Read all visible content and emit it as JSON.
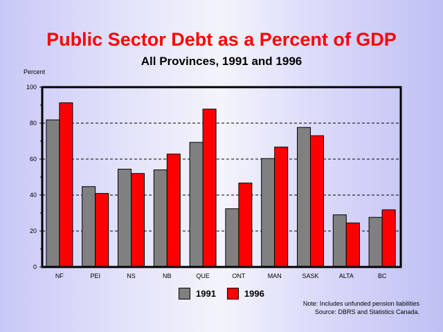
{
  "chart_data": {
    "type": "bar",
    "title": "Public Sector Debt as a Percent of GDP",
    "subtitle": "All Provinces, 1991 and 1996",
    "ylabel": "Percent",
    "xlabel": "",
    "ylim": [
      0,
      100
    ],
    "yticks": [
      0,
      20,
      40,
      60,
      80,
      100
    ],
    "grid": "dashed horizontal at 20,40,60,80",
    "legend_position": "bottom-center",
    "categories": [
      "NF",
      "PEI",
      "NS",
      "NB",
      "QUE",
      "ONT",
      "MAN",
      "SASK",
      "ALTA",
      "BC"
    ],
    "series": [
      {
        "name": "1991",
        "color": "#808080",
        "values": [
          81.8,
          44.7,
          54.4,
          54.0,
          69.3,
          32.4,
          60.3,
          77.6,
          29.0,
          27.6
        ]
      },
      {
        "name": "1996",
        "color": "#ff0000",
        "values": [
          91.3,
          40.9,
          52.0,
          62.8,
          87.8,
          46.7,
          66.7,
          73.0,
          24.5,
          31.8
        ]
      }
    ],
    "notes": [
      "Note: Includes unfunded pension liabilities",
      "Source: DBRS and Statistics Canada."
    ]
  }
}
